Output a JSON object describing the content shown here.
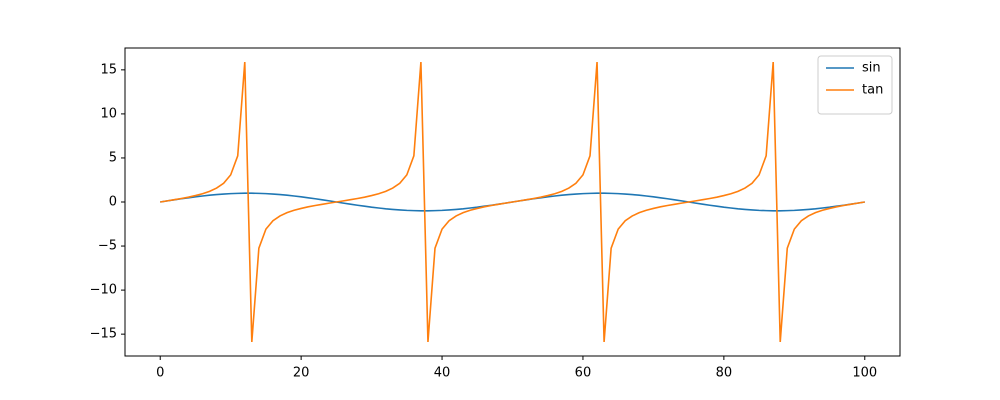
{
  "chart_data": {
    "type": "line",
    "x": [
      0,
      1,
      2,
      3,
      4,
      5,
      6,
      7,
      8,
      9,
      10,
      11,
      12,
      13,
      14,
      15,
      16,
      17,
      18,
      19,
      20,
      21,
      22,
      23,
      24,
      25,
      26,
      27,
      28,
      29,
      30,
      31,
      32,
      33,
      34,
      35,
      36,
      37,
      38,
      39,
      40,
      41,
      42,
      43,
      44,
      45,
      46,
      47,
      48,
      49,
      50,
      51,
      52,
      53,
      54,
      55,
      56,
      57,
      58,
      59,
      60,
      61,
      62,
      63,
      64,
      65,
      66,
      67,
      68,
      69,
      70,
      71,
      72,
      73,
      74,
      75,
      76,
      77,
      78,
      79,
      80,
      81,
      82,
      83,
      84,
      85,
      86,
      87,
      88,
      89,
      90,
      91,
      92,
      93,
      94,
      95,
      96,
      97,
      98,
      99,
      100
    ],
    "series": [
      {
        "name": "sin",
        "color": "#1f77b4",
        "values": [
          0,
          0.13,
          0.25,
          0.37,
          0.48,
          0.59,
          0.68,
          0.77,
          0.84,
          0.9,
          0.95,
          0.98,
          1,
          1,
          0.98,
          0.95,
          0.9,
          0.84,
          0.77,
          0.68,
          0.59,
          0.48,
          0.37,
          0.25,
          0.13,
          0,
          -0.13,
          -0.25,
          -0.37,
          -0.48,
          -0.59,
          -0.68,
          -0.77,
          -0.84,
          -0.9,
          -0.95,
          -0.98,
          -1,
          -1,
          -0.98,
          -0.95,
          -0.9,
          -0.84,
          -0.77,
          -0.68,
          -0.59,
          -0.48,
          -0.37,
          -0.25,
          -0.13,
          0,
          0.13,
          0.25,
          0.37,
          0.48,
          0.59,
          0.68,
          0.77,
          0.84,
          0.9,
          0.95,
          0.98,
          1,
          1,
          0.98,
          0.95,
          0.9,
          0.84,
          0.77,
          0.68,
          0.59,
          0.48,
          0.37,
          0.25,
          0.13,
          0,
          -0.13,
          -0.25,
          -0.37,
          -0.48,
          -0.59,
          -0.68,
          -0.77,
          -0.84,
          -0.9,
          -0.95,
          -0.98,
          -1,
          -1,
          -0.98,
          -0.95,
          -0.9,
          -0.84,
          -0.77,
          -0.68,
          -0.59,
          -0.48,
          -0.37,
          -0.25,
          -0.13,
          0
        ]
      },
      {
        "name": "tan",
        "color": "#ff7f0e",
        "values": [
          0,
          0.13,
          0.26,
          0.4,
          0.55,
          0.73,
          0.94,
          1.21,
          1.58,
          2.13,
          3.08,
          5.24,
          15.89,
          -15.89,
          -5.24,
          -3.08,
          -2.13,
          -1.58,
          -1.21,
          -0.94,
          -0.73,
          -0.55,
          -0.4,
          -0.26,
          -0.13,
          0,
          0.13,
          0.26,
          0.4,
          0.55,
          0.73,
          0.94,
          1.21,
          1.58,
          2.13,
          3.08,
          5.24,
          15.89,
          -15.89,
          -5.24,
          -3.08,
          -2.13,
          -1.58,
          -1.21,
          -0.94,
          -0.73,
          -0.55,
          -0.4,
          -0.26,
          -0.13,
          0,
          0.13,
          0.26,
          0.4,
          0.55,
          0.73,
          0.94,
          1.21,
          1.58,
          2.13,
          3.08,
          5.24,
          15.89,
          -15.89,
          -5.24,
          -3.08,
          -2.13,
          -1.58,
          -1.21,
          -0.94,
          -0.73,
          -0.55,
          -0.4,
          -0.26,
          -0.13,
          0,
          0.13,
          0.26,
          0.4,
          0.55,
          0.73,
          0.94,
          1.21,
          1.58,
          2.13,
          3.08,
          5.24,
          15.89,
          -15.89,
          -5.24,
          -3.08,
          -2.13,
          -1.58,
          -1.21,
          -0.94,
          -0.73,
          -0.55,
          -0.4,
          -0.26,
          -0.13,
          0
        ]
      }
    ],
    "xlim": [
      -5,
      105
    ],
    "xticks": [
      0,
      20,
      40,
      60,
      80,
      100
    ],
    "ylim": [
      -17.48,
      17.48
    ],
    "yticks": [
      {
        "value": -15,
        "label": "−15"
      },
      {
        "value": -10,
        "label": "−10"
      },
      {
        "value": -5,
        "label": "−5"
      },
      0,
      5,
      10,
      15
    ],
    "legend": "upper right"
  }
}
